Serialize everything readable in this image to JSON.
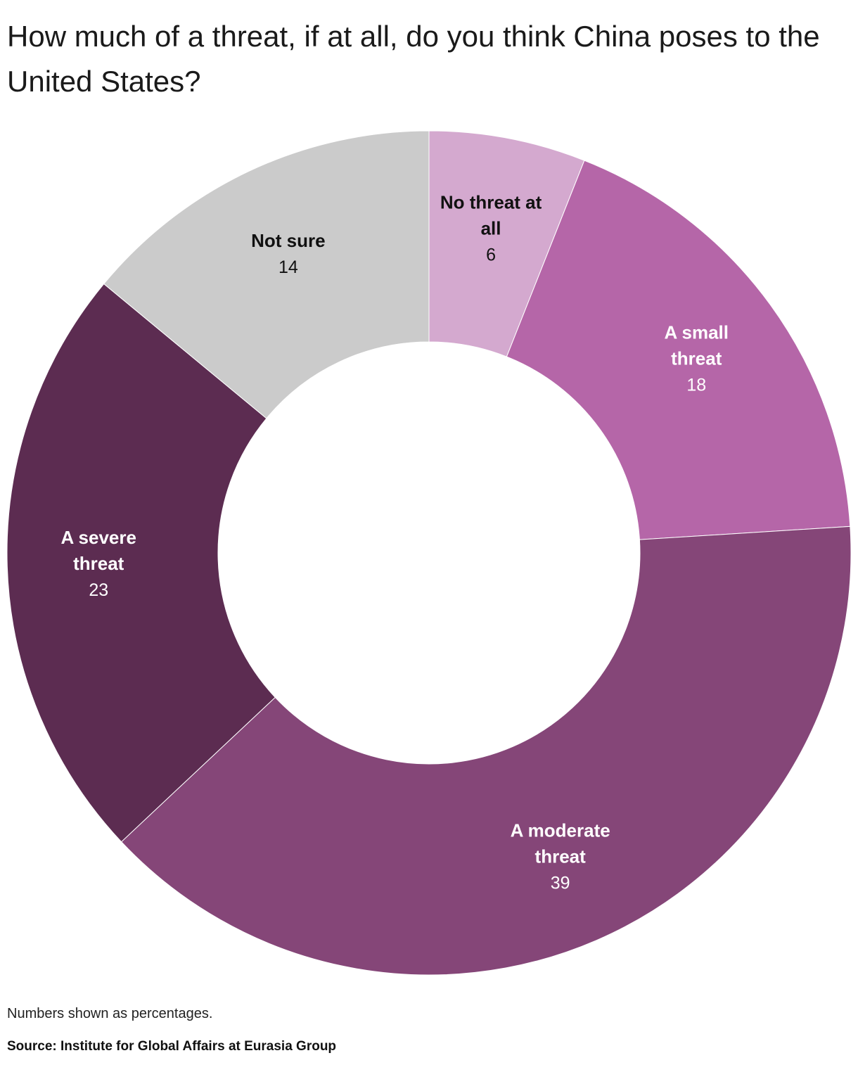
{
  "title": "How much of a threat, if at all, do you think China poses to the United States?",
  "note": "Numbers shown as percentages.",
  "source": "Source: Institute for Global Affairs at Eurasia Group",
  "chart_data": {
    "type": "pie",
    "donut": true,
    "title": "How much of a threat, if at all, do you think China poses to the United States?",
    "unit": "%",
    "slices": [
      {
        "label": "No threat at all",
        "label_lines": [
          "No threat at",
          "all"
        ],
        "value": 6,
        "color": "#d4a9cf",
        "text_color": "#111111"
      },
      {
        "label": "A small threat",
        "label_lines": [
          "A small",
          "threat"
        ],
        "value": 18,
        "color": "#b566a8",
        "text_color": "#ffffff"
      },
      {
        "label": "A moderate threat",
        "label_lines": [
          "A moderate",
          "threat"
        ],
        "value": 39,
        "color": "#854678",
        "text_color": "#ffffff"
      },
      {
        "label": "A severe threat",
        "label_lines": [
          "A severe",
          "threat"
        ],
        "value": 23,
        "color": "#5c2c51",
        "text_color": "#ffffff"
      },
      {
        "label": "Not sure",
        "label_lines": [
          "Not sure"
        ],
        "value": 14,
        "color": "#cbcbcb",
        "text_color": "#111111"
      }
    ]
  }
}
